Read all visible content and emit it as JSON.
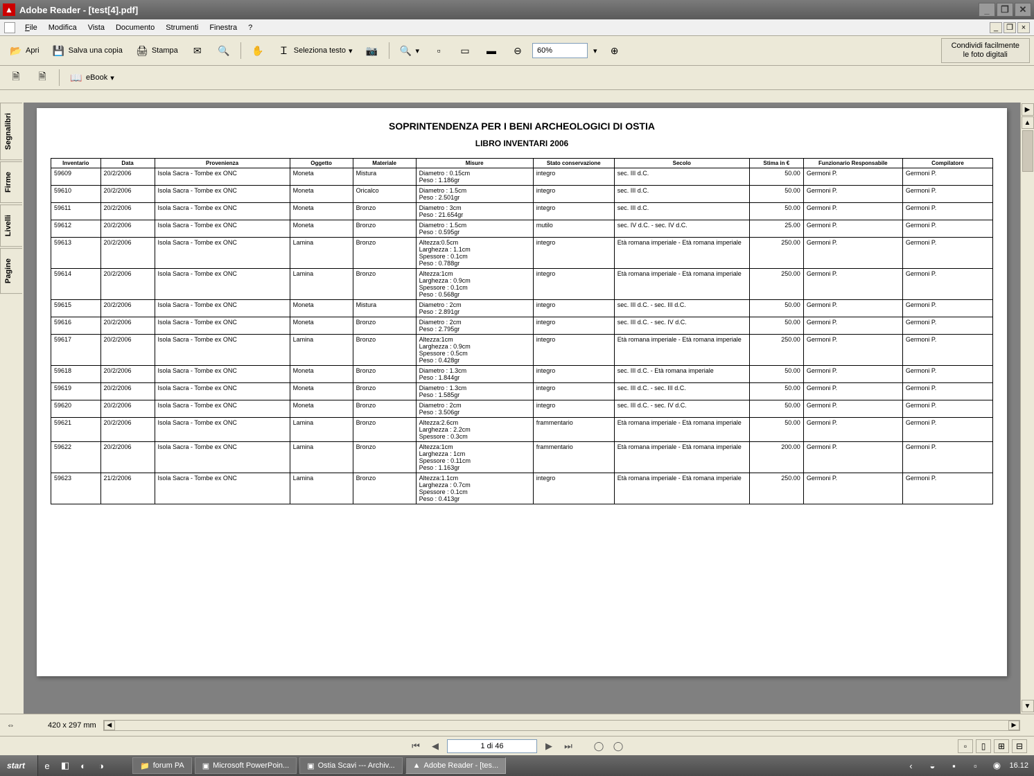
{
  "window": {
    "title": "Adobe Reader - [test[4].pdf]"
  },
  "menu": {
    "file": "File",
    "modifica": "Modifica",
    "vista": "Vista",
    "documento": "Documento",
    "strumenti": "Strumenti",
    "finestra": "Finestra",
    "help": "?"
  },
  "toolbar": {
    "apri": "Apri",
    "salva": "Salva una copia",
    "stampa": "Stampa",
    "seleziona": "Seleziona testo",
    "zoom": "60%",
    "ebook": "eBook"
  },
  "promo": {
    "line1": "Condividi facilmente",
    "line2": "le foto digitali"
  },
  "sidetabs": {
    "segnalibri": "Segnalibri",
    "firme": "Firme",
    "livelli": "Livelli",
    "pagine": "Pagine"
  },
  "doc": {
    "title": "SOPRINTENDENZA PER I BENI ARCHEOLOGICI DI OSTIA",
    "subtitle": "LIBRO INVENTARI 2006",
    "headers": {
      "inventario": "Inventario",
      "data": "Data",
      "provenienza": "Provenienza",
      "oggetto": "Oggetto",
      "materiale": "Materiale",
      "misure": "Misure",
      "stato": "Stato conservazione",
      "secolo": "Secolo",
      "stima": "Stima in €",
      "funzionario": "Funzionario Responsabile",
      "compilatore": "Compilatore"
    },
    "rows": [
      {
        "inv": "59609",
        "data": "20/2/2006",
        "prov": "Isola Sacra - Tombe ex ONC",
        "ogg": "Moneta",
        "mat": "Mistura",
        "mis": "Diametro : 0.15cm\nPeso : 1.186gr",
        "stato": "integro",
        "sec": "sec. III d.C.",
        "stima": "50.00",
        "funz": "Germoni P.",
        "comp": "Germoni P."
      },
      {
        "inv": "59610",
        "data": "20/2/2006",
        "prov": "Isola Sacra - Tombe ex ONC",
        "ogg": "Moneta",
        "mat": "Oricalco",
        "mis": "Diametro : 1.5cm\nPeso : 2.501gr",
        "stato": "integro",
        "sec": "sec. III d.C.",
        "stima": "50.00",
        "funz": "Germoni P.",
        "comp": "Germoni P."
      },
      {
        "inv": "59611",
        "data": "20/2/2006",
        "prov": "Isola Sacra - Tombe ex ONC",
        "ogg": "Moneta",
        "mat": "Bronzo",
        "mis": "Diametro : 3cm\nPeso : 21.654gr",
        "stato": "integro",
        "sec": "sec. III d.C.",
        "stima": "50.00",
        "funz": "Germoni P.",
        "comp": "Germoni P."
      },
      {
        "inv": "59612",
        "data": "20/2/2006",
        "prov": "Isola Sacra - Tombe ex ONC",
        "ogg": "Moneta",
        "mat": "Bronzo",
        "mis": "Diametro : 1.5cm\nPeso : 0.595gr",
        "stato": "mutilo",
        "sec": "sec. IV d.C. - sec. IV d.C.",
        "stima": "25.00",
        "funz": "Germoni P.",
        "comp": "Germoni P."
      },
      {
        "inv": "59613",
        "data": "20/2/2006",
        "prov": "Isola Sacra - Tombe ex ONC",
        "ogg": "Lamina",
        "mat": "Bronzo",
        "mis": "Altezza:0.5cm\nLarghezza : 1.1cm\nSpessore : 0.1cm\nPeso : 0.788gr",
        "stato": "integro",
        "sec": "Età romana imperiale - Età romana imperiale",
        "stima": "250.00",
        "funz": "Germoni P.",
        "comp": "Germoni P."
      },
      {
        "inv": "59614",
        "data": "20/2/2006",
        "prov": "Isola Sacra - Tombe ex ONC",
        "ogg": "Lamina",
        "mat": "Bronzo",
        "mis": "Altezza:1cm\nLarghezza : 0.9cm\nSpessore : 0.1cm\nPeso : 0.568gr",
        "stato": "integro",
        "sec": "Età romana imperiale - Età romana imperiale",
        "stima": "250.00",
        "funz": "Germoni P.",
        "comp": "Germoni P."
      },
      {
        "inv": "59615",
        "data": "20/2/2006",
        "prov": "Isola Sacra - Tombe ex ONC",
        "ogg": "Moneta",
        "mat": "Mistura",
        "mis": "Diametro : 2cm\nPeso : 2.891gr",
        "stato": "integro",
        "sec": "sec. III d.C. - sec. III d.C.",
        "stima": "50.00",
        "funz": "Germoni P.",
        "comp": "Germoni P."
      },
      {
        "inv": "59616",
        "data": "20/2/2006",
        "prov": "Isola Sacra - Tombe ex ONC",
        "ogg": "Moneta",
        "mat": "Bronzo",
        "mis": "Diametro : 2cm\nPeso : 2.795gr",
        "stato": "integro",
        "sec": "sec. III d.C. - sec. IV d.C.",
        "stima": "50.00",
        "funz": "Germoni P.",
        "comp": "Germoni P."
      },
      {
        "inv": "59617",
        "data": "20/2/2006",
        "prov": "Isola Sacra - Tombe ex ONC",
        "ogg": "Lamina",
        "mat": "Bronzo",
        "mis": "Altezza:1cm\nLarghezza : 0.9cm\nSpessore : 0.5cm\nPeso : 0.428gr",
        "stato": "integro",
        "sec": "Età romana imperiale - Età romana imperiale",
        "stima": "250.00",
        "funz": "Germoni P.",
        "comp": "Germoni P."
      },
      {
        "inv": "59618",
        "data": "20/2/2006",
        "prov": "Isola Sacra - Tombe ex ONC",
        "ogg": "Moneta",
        "mat": "Bronzo",
        "mis": "Diametro : 1.3cm\nPeso : 1.844gr",
        "stato": "integro",
        "sec": "sec. III d.C. - Età romana imperiale",
        "stima": "50.00",
        "funz": "Germoni P.",
        "comp": "Germoni P."
      },
      {
        "inv": "59619",
        "data": "20/2/2006",
        "prov": "Isola Sacra - Tombe ex ONC",
        "ogg": "Moneta",
        "mat": "Bronzo",
        "mis": "Diametro : 1.3cm\nPeso : 1.585gr",
        "stato": "integro",
        "sec": "sec. III d.C. - sec. III d.C.",
        "stima": "50.00",
        "funz": "Germoni P.",
        "comp": "Germoni P."
      },
      {
        "inv": "59620",
        "data": "20/2/2006",
        "prov": "Isola Sacra - Tombe ex ONC",
        "ogg": "Moneta",
        "mat": "Bronzo",
        "mis": "Diametro : 2cm\nPeso : 3.506gr",
        "stato": "integro",
        "sec": "sec. III d.C. - sec. IV d.C.",
        "stima": "50.00",
        "funz": "Germoni P.",
        "comp": "Germoni P."
      },
      {
        "inv": "59621",
        "data": "20/2/2006",
        "prov": "Isola Sacra - Tombe ex ONC",
        "ogg": "Lamina",
        "mat": "Bronzo",
        "mis": "Altezza:2.6cm\nLarghezza : 2.2cm\nSpessore : 0.3cm",
        "stato": "frammentario",
        "sec": "Età romana imperiale - Età romana imperiale",
        "stima": "50.00",
        "funz": "Germoni P.",
        "comp": "Germoni P."
      },
      {
        "inv": "59622",
        "data": "20/2/2006",
        "prov": "Isola Sacra - Tombe ex ONC",
        "ogg": "Lamina",
        "mat": "Bronzo",
        "mis": "Altezza:1cm\nLarghezza : 1cm\nSpessore : 0.11cm\nPeso : 1.163gr",
        "stato": "frammentario",
        "sec": "Età romana imperiale - Età romana imperiale",
        "stima": "200.00",
        "funz": "Germoni P.",
        "comp": "Germoni P."
      },
      {
        "inv": "59623",
        "data": "21/2/2006",
        "prov": "Isola Sacra - Tombe ex ONC",
        "ogg": "Lamina",
        "mat": "Bronzo",
        "mis": "Altezza:1.1cm\nLarghezza : 0.7cm\nSpessore : 0.1cm\nPeso : 0.413gr",
        "stato": "integro",
        "sec": "Età romana imperiale - Età romana imperiale",
        "stima": "250.00",
        "funz": "Germoni P.",
        "comp": "Germoni P."
      }
    ]
  },
  "status": {
    "dims": "420 x 297 mm",
    "page": "1 di 46"
  },
  "taskbar": {
    "start": "start",
    "tasks": {
      "forum": "forum PA",
      "ppt": "Microsoft PowerPoin...",
      "ostia": "Ostia Scavi --- Archiv...",
      "reader": "Adobe Reader - [tes..."
    },
    "clock": "16.12"
  }
}
